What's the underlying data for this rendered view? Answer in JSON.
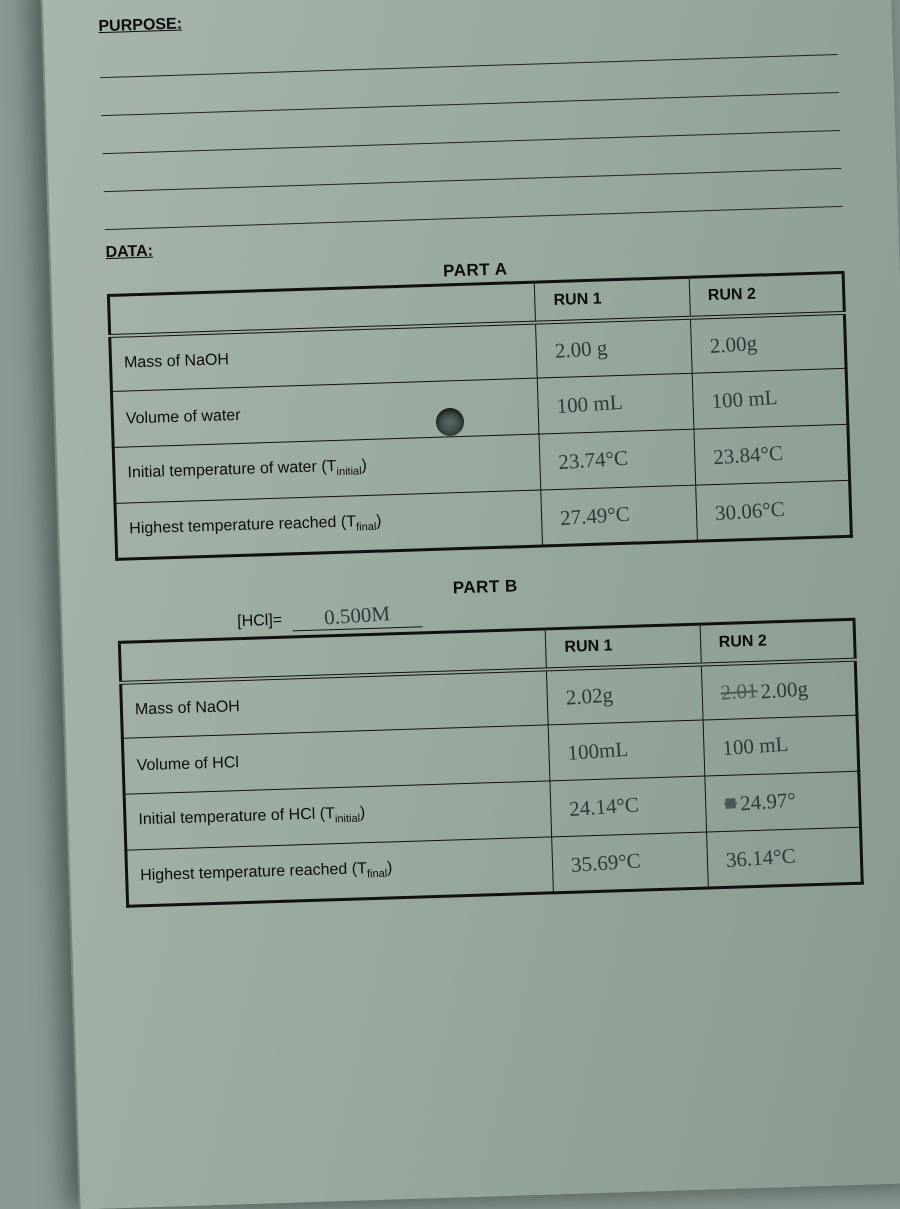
{
  "headings": {
    "purpose": "PURPOSE:",
    "data": "DATA:"
  },
  "partA": {
    "title": "PART A",
    "columns": [
      "",
      "RUN 1",
      "RUN 2"
    ],
    "rows": [
      {
        "label": "Mass of NaOH",
        "run1": "2.00 g",
        "run2": "2.00g"
      },
      {
        "label": "Volume of water",
        "run1": "100 mL",
        "run2": "100 mL"
      },
      {
        "label": "Initial temperature of water (T",
        "label_sub": "initial",
        "label_end": ")",
        "run1": "23.74°C",
        "run2": "23.84°C"
      },
      {
        "label": "Highest temperature reached (T",
        "label_sub": "final",
        "label_end": ")",
        "run1": "27.49°C",
        "run2": "30.06°C"
      }
    ]
  },
  "partB": {
    "title": "PART B",
    "hcl_label": "[HCl]=",
    "hcl_value": "0.500M",
    "columns": [
      "",
      "RUN 1",
      "RUN 2"
    ],
    "rows": [
      {
        "label": "Mass of NaOH",
        "run1": "2.02g",
        "run2_strike": "2.01",
        "run2": "2.00g"
      },
      {
        "label": "Volume of HCl",
        "run1": "100mL",
        "run2": "100 mL"
      },
      {
        "label": "Initial temperature of HCl (T",
        "label_sub": "initial",
        "label_end": ")",
        "run1": "24.14°C",
        "run2_strike": "■",
        "run2": "24.97°"
      },
      {
        "label": "Highest temperature reached (T",
        "label_sub": "final",
        "label_end": ")",
        "run1": "35.69°C",
        "run2": "36.14°C"
      }
    ]
  },
  "styling": {
    "page_bg": "#9aab9f",
    "ink_color": "#0d0d0d",
    "handwriting_color": "#2a3a3a",
    "border_color": "#111",
    "ruled_line_count": 5,
    "page_rotation_deg": -1.8,
    "font_family_print": "Arial",
    "font_family_hand": "Comic Sans MS"
  }
}
